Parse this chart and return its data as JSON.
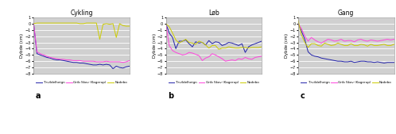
{
  "titles": [
    "Cykling",
    "Løb",
    "Gang"
  ],
  "panel_labels": [
    "a",
    "b",
    "c"
  ],
  "ylabel": "Dybde (cm)",
  "ylim": [
    -8,
    1
  ],
  "yticks": [
    -8,
    -7,
    -6,
    -5,
    -4,
    -3,
    -2,
    -1,
    0,
    1
  ],
  "legend_labels": [
    "Tirvildelheign",
    "Grib Skov (Kagerup)",
    "Nodebo"
  ],
  "line_colors": [
    "#2222aa",
    "#ff44dd",
    "#cccc00"
  ],
  "bg_color": "#d0d0d0",
  "cykling_x": [
    1,
    2,
    3,
    4,
    5,
    6,
    7,
    8,
    9,
    10,
    11,
    12,
    13,
    14,
    15,
    16,
    17,
    18,
    19,
    20,
    21,
    22,
    23,
    24,
    25,
    26,
    27,
    28,
    29,
    30
  ],
  "cykling_tirv": [
    0,
    -4.8,
    -5.0,
    -5.2,
    -5.4,
    -5.5,
    -5.7,
    -5.8,
    -5.8,
    -5.9,
    -6.0,
    -6.1,
    -6.2,
    -6.2,
    -6.3,
    -6.3,
    -6.4,
    -6.5,
    -6.6,
    -6.6,
    -6.5,
    -6.6,
    -6.5,
    -6.6,
    -7.2,
    -6.8,
    -7.0,
    -7.1,
    -6.9,
    -6.8
  ],
  "cykling_grib": [
    0,
    -4.5,
    -4.8,
    -5.0,
    -5.2,
    -5.4,
    -5.5,
    -5.6,
    -5.7,
    -5.7,
    -5.8,
    -5.8,
    -5.9,
    -5.9,
    -5.9,
    -6.0,
    -6.0,
    -6.0,
    -6.0,
    -6.1,
    -6.1,
    -6.1,
    -6.0,
    -6.1,
    -6.1,
    -6.1,
    -6.1,
    -6.2,
    -6.1,
    -5.9
  ],
  "cykling_nod": [
    0.0,
    0.1,
    0.1,
    0.1,
    0.1,
    0.1,
    0.1,
    0.1,
    0.1,
    0.1,
    0.1,
    0.1,
    0.1,
    0.1,
    0.0,
    0.0,
    0.1,
    0.1,
    0.1,
    0.1,
    -2.5,
    -0.1,
    0.0,
    -0.1,
    0.0,
    -2.2,
    0.0,
    -0.3,
    -0.4,
    -0.4
  ],
  "lob_x": [
    1,
    2,
    3,
    4,
    5,
    6,
    7,
    8,
    9,
    10,
    11,
    12,
    13,
    14,
    15,
    16,
    17,
    18,
    19,
    20,
    21,
    22,
    23,
    24,
    25,
    26,
    27,
    28,
    29,
    30
  ],
  "lob_tirv": [
    0,
    -1.5,
    -2.2,
    -4.0,
    -2.8,
    -2.8,
    -2.6,
    -3.2,
    -3.7,
    -2.9,
    -3.1,
    -3.0,
    -3.4,
    -2.7,
    -3.2,
    -2.9,
    -3.0,
    -3.5,
    -3.3,
    -3.0,
    -3.1,
    -3.3,
    -3.5,
    -3.2,
    -4.6,
    -3.7,
    -3.4,
    -3.2,
    -3.0,
    -2.8
  ],
  "lob_grib": [
    0,
    -3.5,
    -4.3,
    -4.6,
    -4.8,
    -5.0,
    -4.9,
    -4.6,
    -4.7,
    -4.9,
    -5.1,
    -5.9,
    -5.5,
    -5.3,
    -4.8,
    -5.0,
    -5.3,
    -5.6,
    -6.0,
    -5.9,
    -5.8,
    -5.9,
    -5.6,
    -5.7,
    -5.4,
    -5.6,
    -5.7,
    -5.4,
    -5.3,
    -5.2
  ],
  "lob_nod": [
    0,
    -0.5,
    -1.5,
    -2.6,
    -3.1,
    -2.8,
    -2.5,
    -3.0,
    -3.1,
    -3.3,
    -2.8,
    -3.0,
    -3.4,
    -3.9,
    -3.5,
    -3.5,
    -4.1,
    -3.9,
    -3.9,
    -3.7,
    -3.8,
    -3.9,
    -3.9,
    -3.8,
    -3.8,
    -3.9,
    -3.8,
    -3.8,
    -3.8,
    -3.7
  ],
  "gang_x": [
    1,
    2,
    3,
    4,
    5,
    6,
    7,
    8,
    9,
    10,
    11,
    12,
    13,
    14,
    15,
    16,
    17,
    18,
    19,
    20,
    21,
    22,
    23,
    24,
    25,
    26,
    27,
    28,
    29,
    30
  ],
  "gang_tirv": [
    0,
    -1.2,
    -2.5,
    -4.5,
    -5.0,
    -5.2,
    -5.3,
    -5.5,
    -5.6,
    -5.7,
    -5.8,
    -5.9,
    -6.0,
    -6.0,
    -6.1,
    -6.1,
    -6.0,
    -6.2,
    -6.1,
    -6.0,
    -6.0,
    -6.1,
    -6.1,
    -6.2,
    -6.1,
    -6.2,
    -6.3,
    -6.2,
    -6.2,
    -6.2
  ],
  "gang_grib": [
    0,
    -0.8,
    -2.0,
    -2.8,
    -2.2,
    -2.6,
    -2.9,
    -3.1,
    -2.8,
    -2.5,
    -2.6,
    -2.8,
    -2.7,
    -2.5,
    -2.8,
    -2.7,
    -2.7,
    -2.9,
    -2.6,
    -2.5,
    -2.7,
    -2.8,
    -2.6,
    -2.7,
    -2.8,
    -2.7,
    -2.6,
    -2.5,
    -2.6,
    -2.5
  ],
  "gang_nod": [
    0.5,
    -1.8,
    -3.0,
    -3.8,
    -3.2,
    -3.2,
    -3.5,
    -3.6,
    -3.1,
    -3.3,
    -3.5,
    -3.4,
    -3.1,
    -3.3,
    -3.5,
    -3.5,
    -3.2,
    -3.5,
    -3.5,
    -3.3,
    -3.4,
    -3.6,
    -3.3,
    -3.5,
    -3.5,
    -3.4,
    -3.3,
    -3.5,
    -3.5,
    -3.3
  ]
}
